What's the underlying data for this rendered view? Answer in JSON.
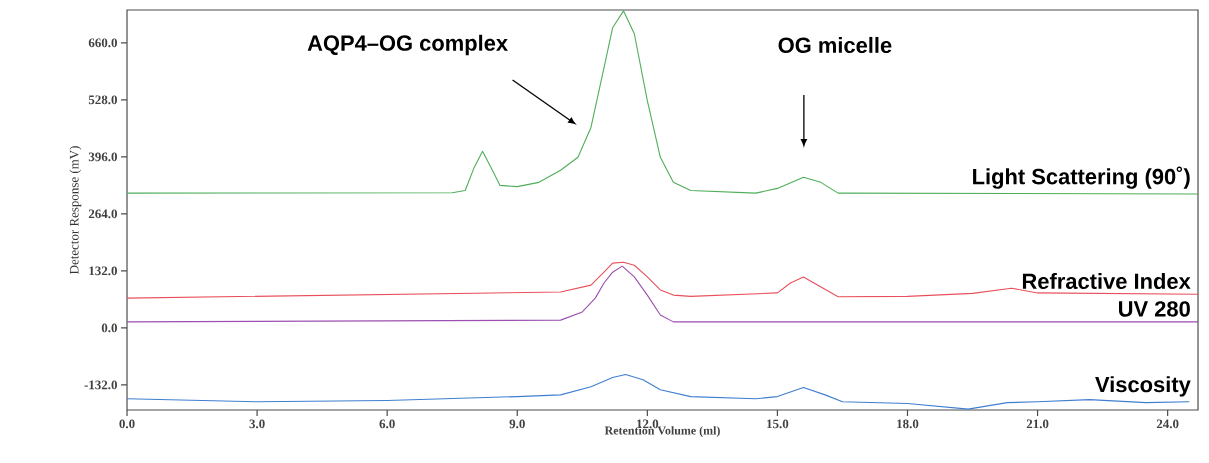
{
  "chart_data": {
    "type": "line",
    "xlabel": "Retention Volume (ml)",
    "ylabel": "Detector Response (mV)",
    "xlim": [
      0,
      24.7
    ],
    "ylim": [
      -190,
      736
    ],
    "xticks": [
      {
        "value": 0,
        "label": "0.0"
      },
      {
        "value": 3,
        "label": "3.0"
      },
      {
        "value": 6,
        "label": "6.0"
      },
      {
        "value": 9,
        "label": "9.0"
      },
      {
        "value": 12,
        "label": "12.0"
      },
      {
        "value": 15,
        "label": "15.0"
      },
      {
        "value": 18,
        "label": "18.0"
      },
      {
        "value": 21,
        "label": "21.0"
      },
      {
        "value": 24,
        "label": "24.0"
      }
    ],
    "yticks": [
      {
        "value": -132,
        "label": "-132.0"
      },
      {
        "value": 0,
        "label": "0.0"
      },
      {
        "value": 132,
        "label": "132.0"
      },
      {
        "value": 264,
        "label": "264.0"
      },
      {
        "value": 396,
        "label": "396.0"
      },
      {
        "value": 528,
        "label": "528.0"
      },
      {
        "value": 660,
        "label": "660.0"
      }
    ],
    "grid": false,
    "legend": false,
    "marker": "none",
    "line_style": "solid",
    "series": [
      {
        "name": "Light Scattering (90˚)",
        "color": "#4fae5a",
        "x": [
          0,
          7.5,
          7.8,
          8.0,
          8.2,
          8.4,
          8.6,
          9.0,
          9.5,
          10.0,
          10.4,
          10.7,
          11.0,
          11.2,
          11.45,
          11.7,
          12.0,
          12.3,
          12.6,
          13.0,
          14.5,
          15.0,
          15.6,
          16.0,
          16.4,
          24.7
        ],
        "values": [
          312,
          313,
          318,
          370,
          409,
          370,
          330,
          327,
          337,
          365,
          395,
          464,
          602,
          695,
          734,
          681,
          526,
          395,
          337,
          318,
          312,
          323,
          349,
          337,
          312,
          310
        ]
      },
      {
        "name": "Refractive Index",
        "color": "#e8505b",
        "x": [
          0,
          10.0,
          10.7,
          11.0,
          11.2,
          11.45,
          11.7,
          12.0,
          12.3,
          12.6,
          13.0,
          15.0,
          15.3,
          15.6,
          16.0,
          16.4,
          18.0,
          19.5,
          20.4,
          21.0,
          24.7
        ],
        "values": [
          69,
          83,
          99,
          129,
          150,
          152,
          145,
          118,
          88,
          76,
          73,
          81,
          104,
          118,
          95,
          72,
          73,
          80,
          92,
          81,
          78
        ]
      },
      {
        "name": "UV 280",
        "color": "#9b4fb0",
        "x": [
          0,
          10.0,
          10.5,
          10.8,
          11.0,
          11.2,
          11.42,
          11.7,
          12.0,
          12.3,
          12.6,
          24.7
        ],
        "values": [
          14,
          18,
          37,
          69,
          104,
          129,
          143,
          118,
          76,
          30,
          14,
          14
        ]
      },
      {
        "name": "Viscosity",
        "color": "#3f7fd0",
        "x": [
          0,
          3,
          6,
          9,
          10,
          10.7,
          11.2,
          11.5,
          11.9,
          12.3,
          13,
          14.5,
          15,
          15.6,
          16.1,
          16.5,
          18,
          19.4,
          20.3,
          21,
          22.2,
          23.5,
          24.5
        ],
        "values": [
          -164,
          -171,
          -168,
          -159,
          -155,
          -136,
          -115,
          -108,
          -120,
          -143,
          -159,
          -164,
          -159,
          -138,
          -155,
          -171,
          -175,
          -188,
          -173,
          -171,
          -166,
          -173,
          -171
        ]
      }
    ],
    "annotations": [
      "AQP4–OG complex",
      "OG micelle"
    ]
  }
}
